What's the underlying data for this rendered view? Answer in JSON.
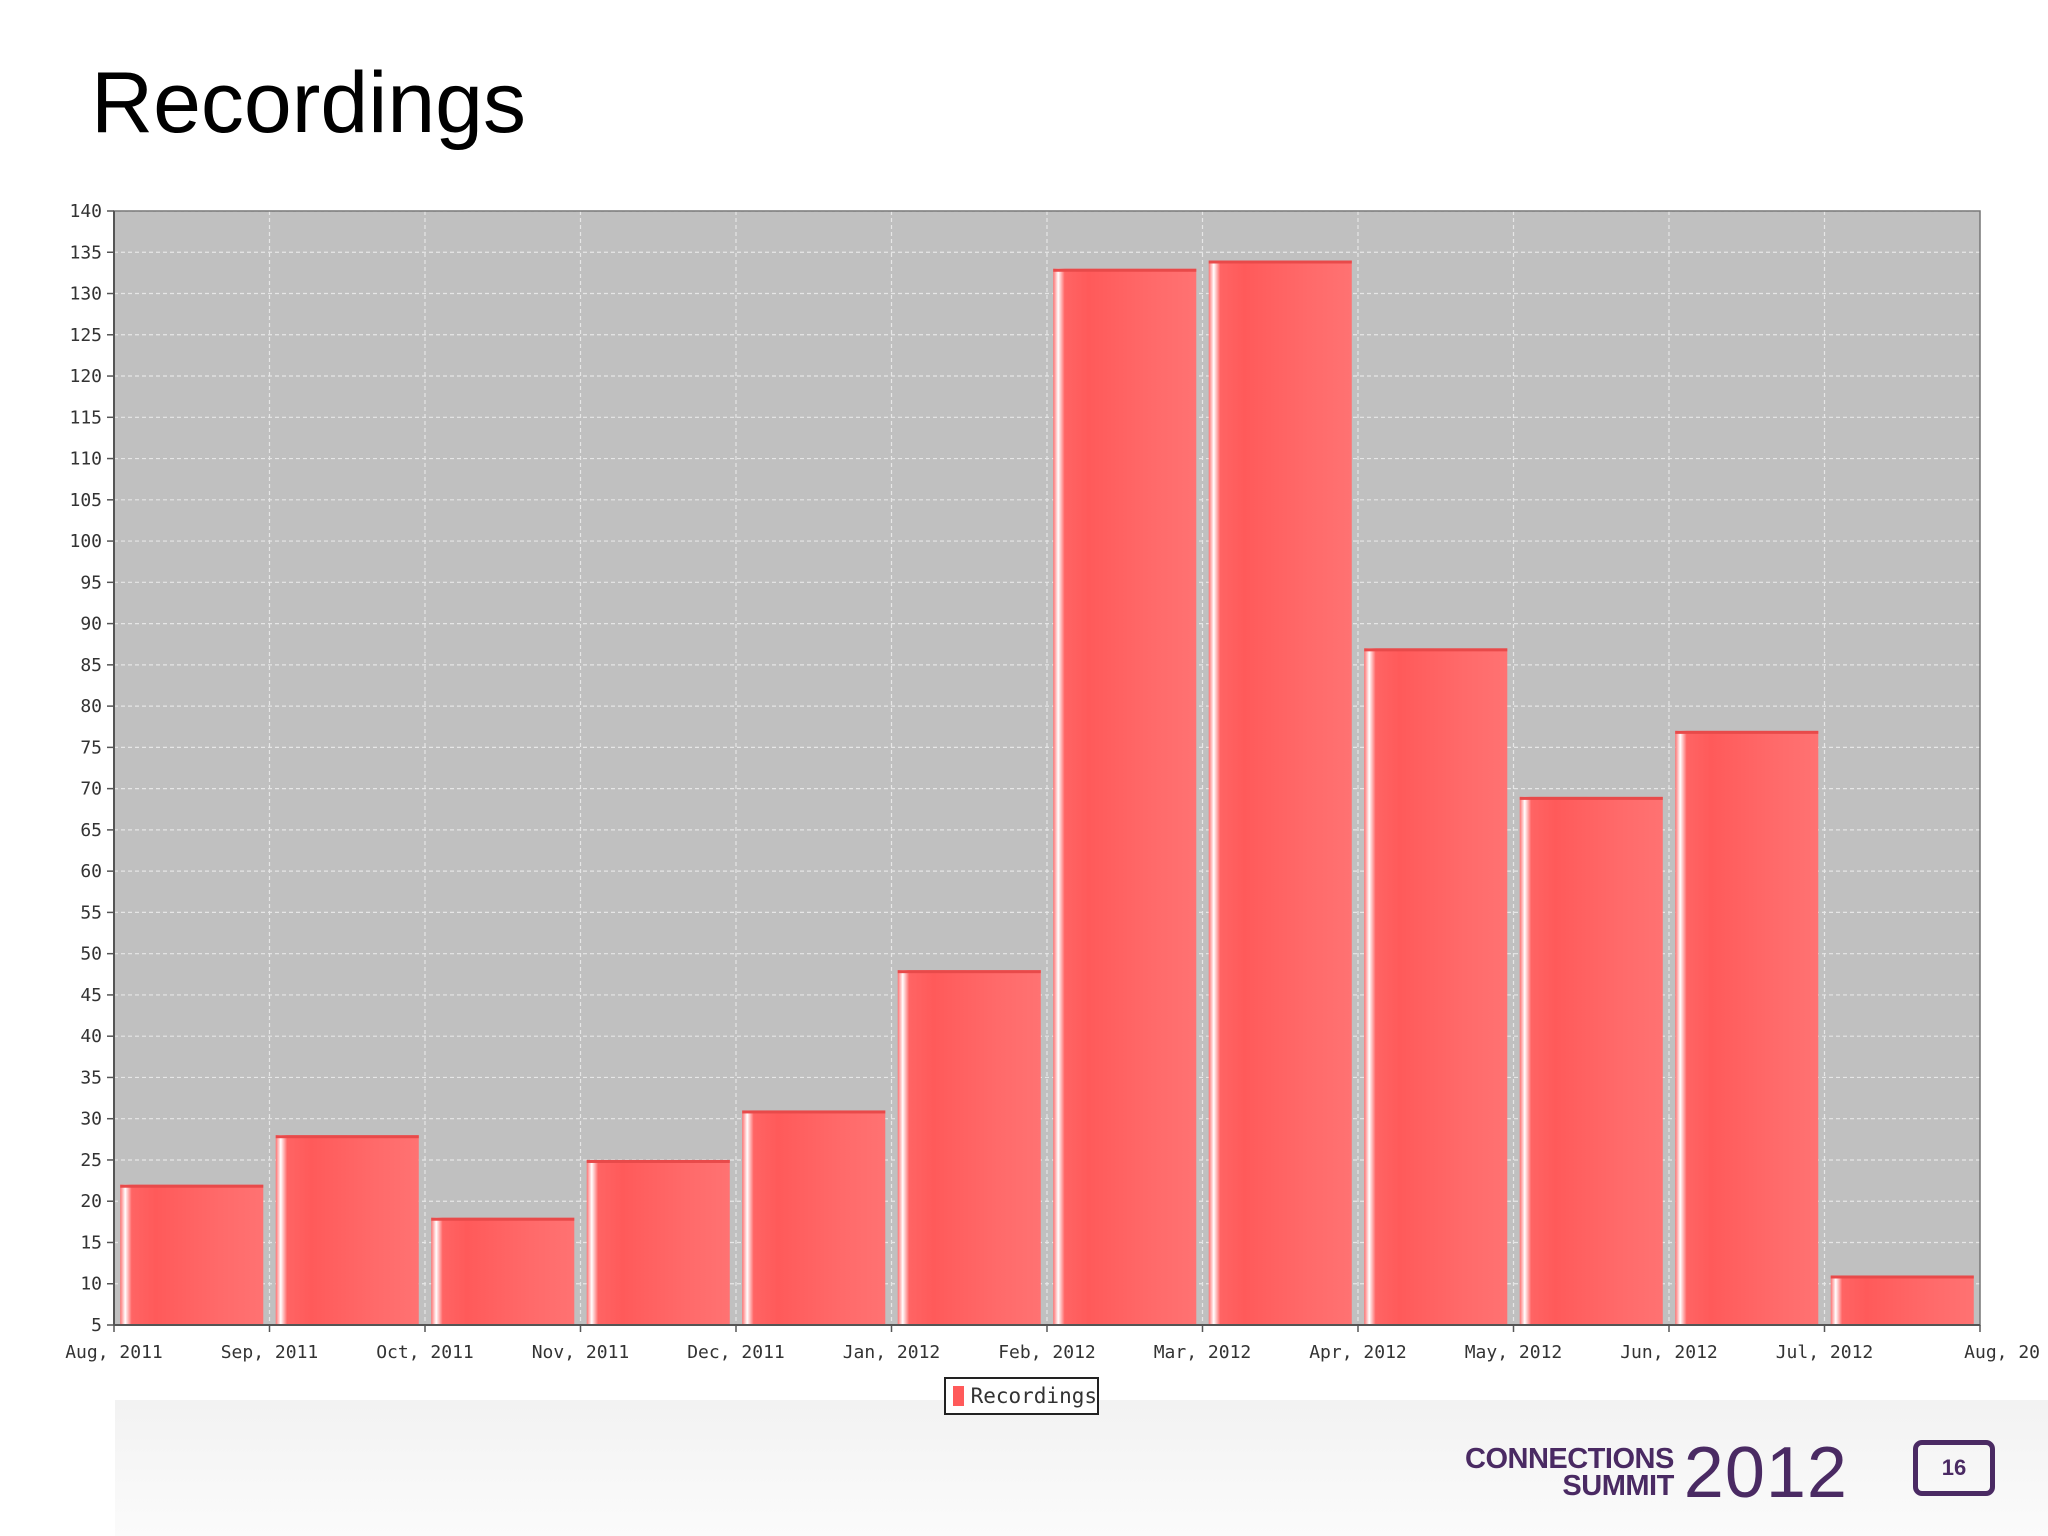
{
  "slide": {
    "title": "Recordings",
    "page_number": "16",
    "brand_line1": "CONNECTIONS",
    "brand_line2": "SUMMIT",
    "brand_year": "2012"
  },
  "chart_data": {
    "type": "bar",
    "title": "",
    "xlabel": "",
    "ylabel": "",
    "categories": [
      "Aug, 2011",
      "Sep, 2011",
      "Oct, 2011",
      "Nov, 2011",
      "Dec, 2011",
      "Jan, 2012",
      "Feb, 2012",
      "Mar, 2012",
      "Apr, 2012",
      "May, 2012",
      "Jun, 2012",
      "Jul, 2012"
    ],
    "x_tick_labels": [
      "Aug, 2011",
      "Sep, 2011",
      "Oct, 2011",
      "Nov, 2011",
      "Dec, 2011",
      "Jan, 2012",
      "Feb, 2012",
      "Mar, 2012",
      "Apr, 2012",
      "May, 2012",
      "Jun, 2012",
      "Jul, 2012",
      "Aug, 20"
    ],
    "series": [
      {
        "name": "Recordings",
        "values": [
          22,
          28,
          18,
          25,
          31,
          48,
          133,
          134,
          87,
          69,
          77,
          11
        ]
      }
    ],
    "ylim": [
      5,
      140
    ],
    "y_ticks": [
      5,
      10,
      15,
      20,
      25,
      30,
      35,
      40,
      45,
      50,
      55,
      60,
      65,
      70,
      75,
      80,
      85,
      90,
      95,
      100,
      105,
      110,
      115,
      120,
      125,
      130,
      135,
      140
    ],
    "grid": true,
    "legend_position": "bottom-center",
    "colors": {
      "bar": "#ff5a5a",
      "plot_background": "#c0c0c0",
      "gridline": "#e6e6e6"
    }
  }
}
